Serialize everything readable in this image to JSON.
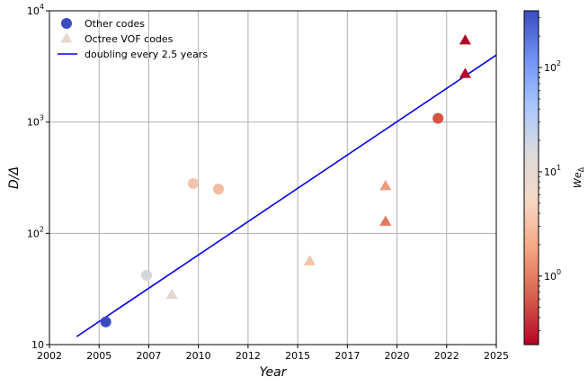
{
  "chart_data": {
    "type": "scatter",
    "xlabel": "Year",
    "ylabel_main": "D/Δ",
    "colorbar_label_main": "We",
    "colorbar_label_sub": "Δ",
    "x_scale": "linear",
    "y_scale": "log",
    "xlim": [
      2002,
      2025
    ],
    "ylim": [
      10,
      10000
    ],
    "grid": true,
    "legend_position": "upper-left",
    "x_ticks": [
      "2002",
      "2005",
      "2007",
      "2010",
      "2012",
      "2015",
      "2017",
      "2020",
      "2022",
      "2025"
    ],
    "y_ticks": [
      {
        "value": 10,
        "base": "10",
        "exp": ""
      },
      {
        "value": 100,
        "base": "10",
        "exp": "2"
      },
      {
        "value": 1000,
        "base": "10",
        "exp": "3"
      },
      {
        "value": 10000,
        "base": "10",
        "exp": "4"
      }
    ],
    "colorbar": {
      "scale": "log",
      "range": [
        0.22,
        350
      ],
      "ticks": [
        {
          "value": 1,
          "base": "10",
          "exp": "0"
        },
        {
          "value": 10,
          "base": "10",
          "exp": "1"
        },
        {
          "value": 100,
          "base": "10",
          "exp": "2"
        }
      ],
      "colormap": [
        "#b40426",
        "#d6604d",
        "#f4a582",
        "#f7d7c4",
        "#dddcdc",
        "#a9c6fd",
        "#6f92f3",
        "#3b4cc0"
      ]
    },
    "series": [
      {
        "name": "Other codes",
        "marker": "circle",
        "legend_color": "#3b4cc0",
        "points": [
          {
            "x": 2004.9,
            "y": 16,
            "color": "#3b4cc0"
          },
          {
            "x": 2007.0,
            "y": 42,
            "color": "#d4d6dd"
          },
          {
            "x": 2009.4,
            "y": 280,
            "color": "#f2c4ac"
          },
          {
            "x": 2010.7,
            "y": 250,
            "color": "#f0bba0"
          },
          {
            "x": 2022.0,
            "y": 1080,
            "color": "#d65244"
          }
        ]
      },
      {
        "name": "Octree VOF codes",
        "marker": "triangle",
        "legend_color": "#e5d8cc",
        "points": [
          {
            "x": 2008.3,
            "y": 28,
            "color": "#e2d6d0"
          },
          {
            "x": 2015.4,
            "y": 56,
            "color": "#f1c4a8"
          },
          {
            "x": 2019.3,
            "y": 265,
            "color": "#ee9a7e"
          },
          {
            "x": 2019.3,
            "y": 127,
            "color": "#e0795f"
          },
          {
            "x": 2023.4,
            "y": 5400,
            "color": "#b40426"
          },
          {
            "x": 2023.4,
            "y": 2700,
            "color": "#b40426"
          }
        ]
      },
      {
        "name": "doubling every 2.5 years",
        "type": "line",
        "color": "#0000ee",
        "points": [
          {
            "x": 2003.4,
            "y": 11.8
          },
          {
            "x": 2025.0,
            "y": 4000
          }
        ]
      }
    ]
  }
}
